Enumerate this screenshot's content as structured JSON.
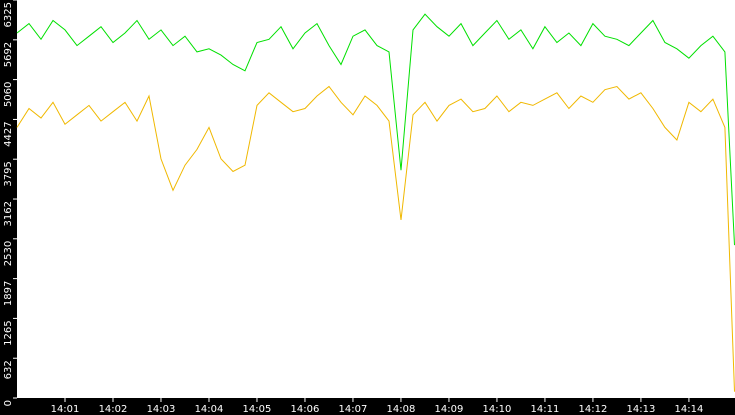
{
  "chart_data": {
    "type": "line",
    "x": [
      0,
      0.25,
      0.5,
      0.75,
      1,
      1.25,
      1.5,
      1.75,
      2,
      2.25,
      2.5,
      2.75,
      3,
      3.25,
      3.5,
      3.75,
      4,
      4.25,
      4.5,
      4.75,
      5,
      5.25,
      5.5,
      5.75,
      6,
      6.25,
      6.5,
      6.75,
      7,
      7.25,
      7.5,
      7.75,
      8,
      8.25,
      8.5,
      8.75,
      9,
      9.25,
      9.5,
      9.75,
      10,
      10.25,
      10.5,
      10.75,
      11,
      11.25,
      11.5,
      11.75,
      12,
      12.25,
      12.5,
      12.75,
      13,
      13.25,
      13.5,
      13.75,
      14,
      14.25,
      14.5,
      14.75,
      14.95
    ],
    "series": [
      {
        "color": "#00e000",
        "values": [
          5800,
          5950,
          5700,
          6000,
          5850,
          5600,
          5750,
          5900,
          5650,
          5800,
          6000,
          5700,
          5850,
          5600,
          5750,
          5500,
          5550,
          5450,
          5300,
          5200,
          5650,
          5700,
          5900,
          5550,
          5800,
          5950,
          5600,
          5300,
          5750,
          5850,
          5600,
          5500,
          3620,
          5850,
          6100,
          5900,
          5750,
          5950,
          5600,
          5800,
          6000,
          5700,
          5850,
          5550,
          5900,
          5650,
          5800,
          5600,
          5950,
          5750,
          5700,
          5600,
          5800,
          6000,
          5650,
          5550,
          5400,
          5600,
          5750,
          5500,
          2430
        ]
      },
      {
        "color": "#f0b800",
        "values": [
          4300,
          4600,
          4450,
          4700,
          4350,
          4500,
          4650,
          4400,
          4550,
          4700,
          4400,
          4800,
          3800,
          3300,
          3700,
          3950,
          4300,
          3800,
          3600,
          3700,
          4650,
          4850,
          4700,
          4550,
          4600,
          4800,
          4950,
          4700,
          4500,
          4800,
          4650,
          4400,
          2830,
          4500,
          4700,
          4400,
          4650,
          4750,
          4550,
          4600,
          4800,
          4550,
          4700,
          4650,
          4750,
          4850,
          4600,
          4800,
          4700,
          4900,
          4950,
          4750,
          4850,
          4600,
          4300,
          4100,
          4700,
          4550,
          4750,
          4300,
          100
        ]
      }
    ],
    "xlim": [
      0,
      14.96
    ],
    "xticks": [
      {
        "value": 1,
        "label": "14:01"
      },
      {
        "value": 2,
        "label": "14:02"
      },
      {
        "value": 3,
        "label": "14:03"
      },
      {
        "value": 4,
        "label": "14:04"
      },
      {
        "value": 5,
        "label": "14:05"
      },
      {
        "value": 6,
        "label": "14:06"
      },
      {
        "value": 7,
        "label": "14:07"
      },
      {
        "value": 8,
        "label": "14:08"
      },
      {
        "value": 9,
        "label": "14:09"
      },
      {
        "value": 10,
        "label": "14:10"
      },
      {
        "value": 11,
        "label": "14:11"
      },
      {
        "value": 12,
        "label": "14:12"
      },
      {
        "value": 13,
        "label": "14:13"
      },
      {
        "value": 14,
        "label": "14:14"
      }
    ],
    "ylim": [
      0,
      6325
    ],
    "yticks": [
      0,
      632,
      1265,
      1897,
      2530,
      3162,
      3795,
      4427,
      5060,
      5692,
      6325
    ]
  }
}
